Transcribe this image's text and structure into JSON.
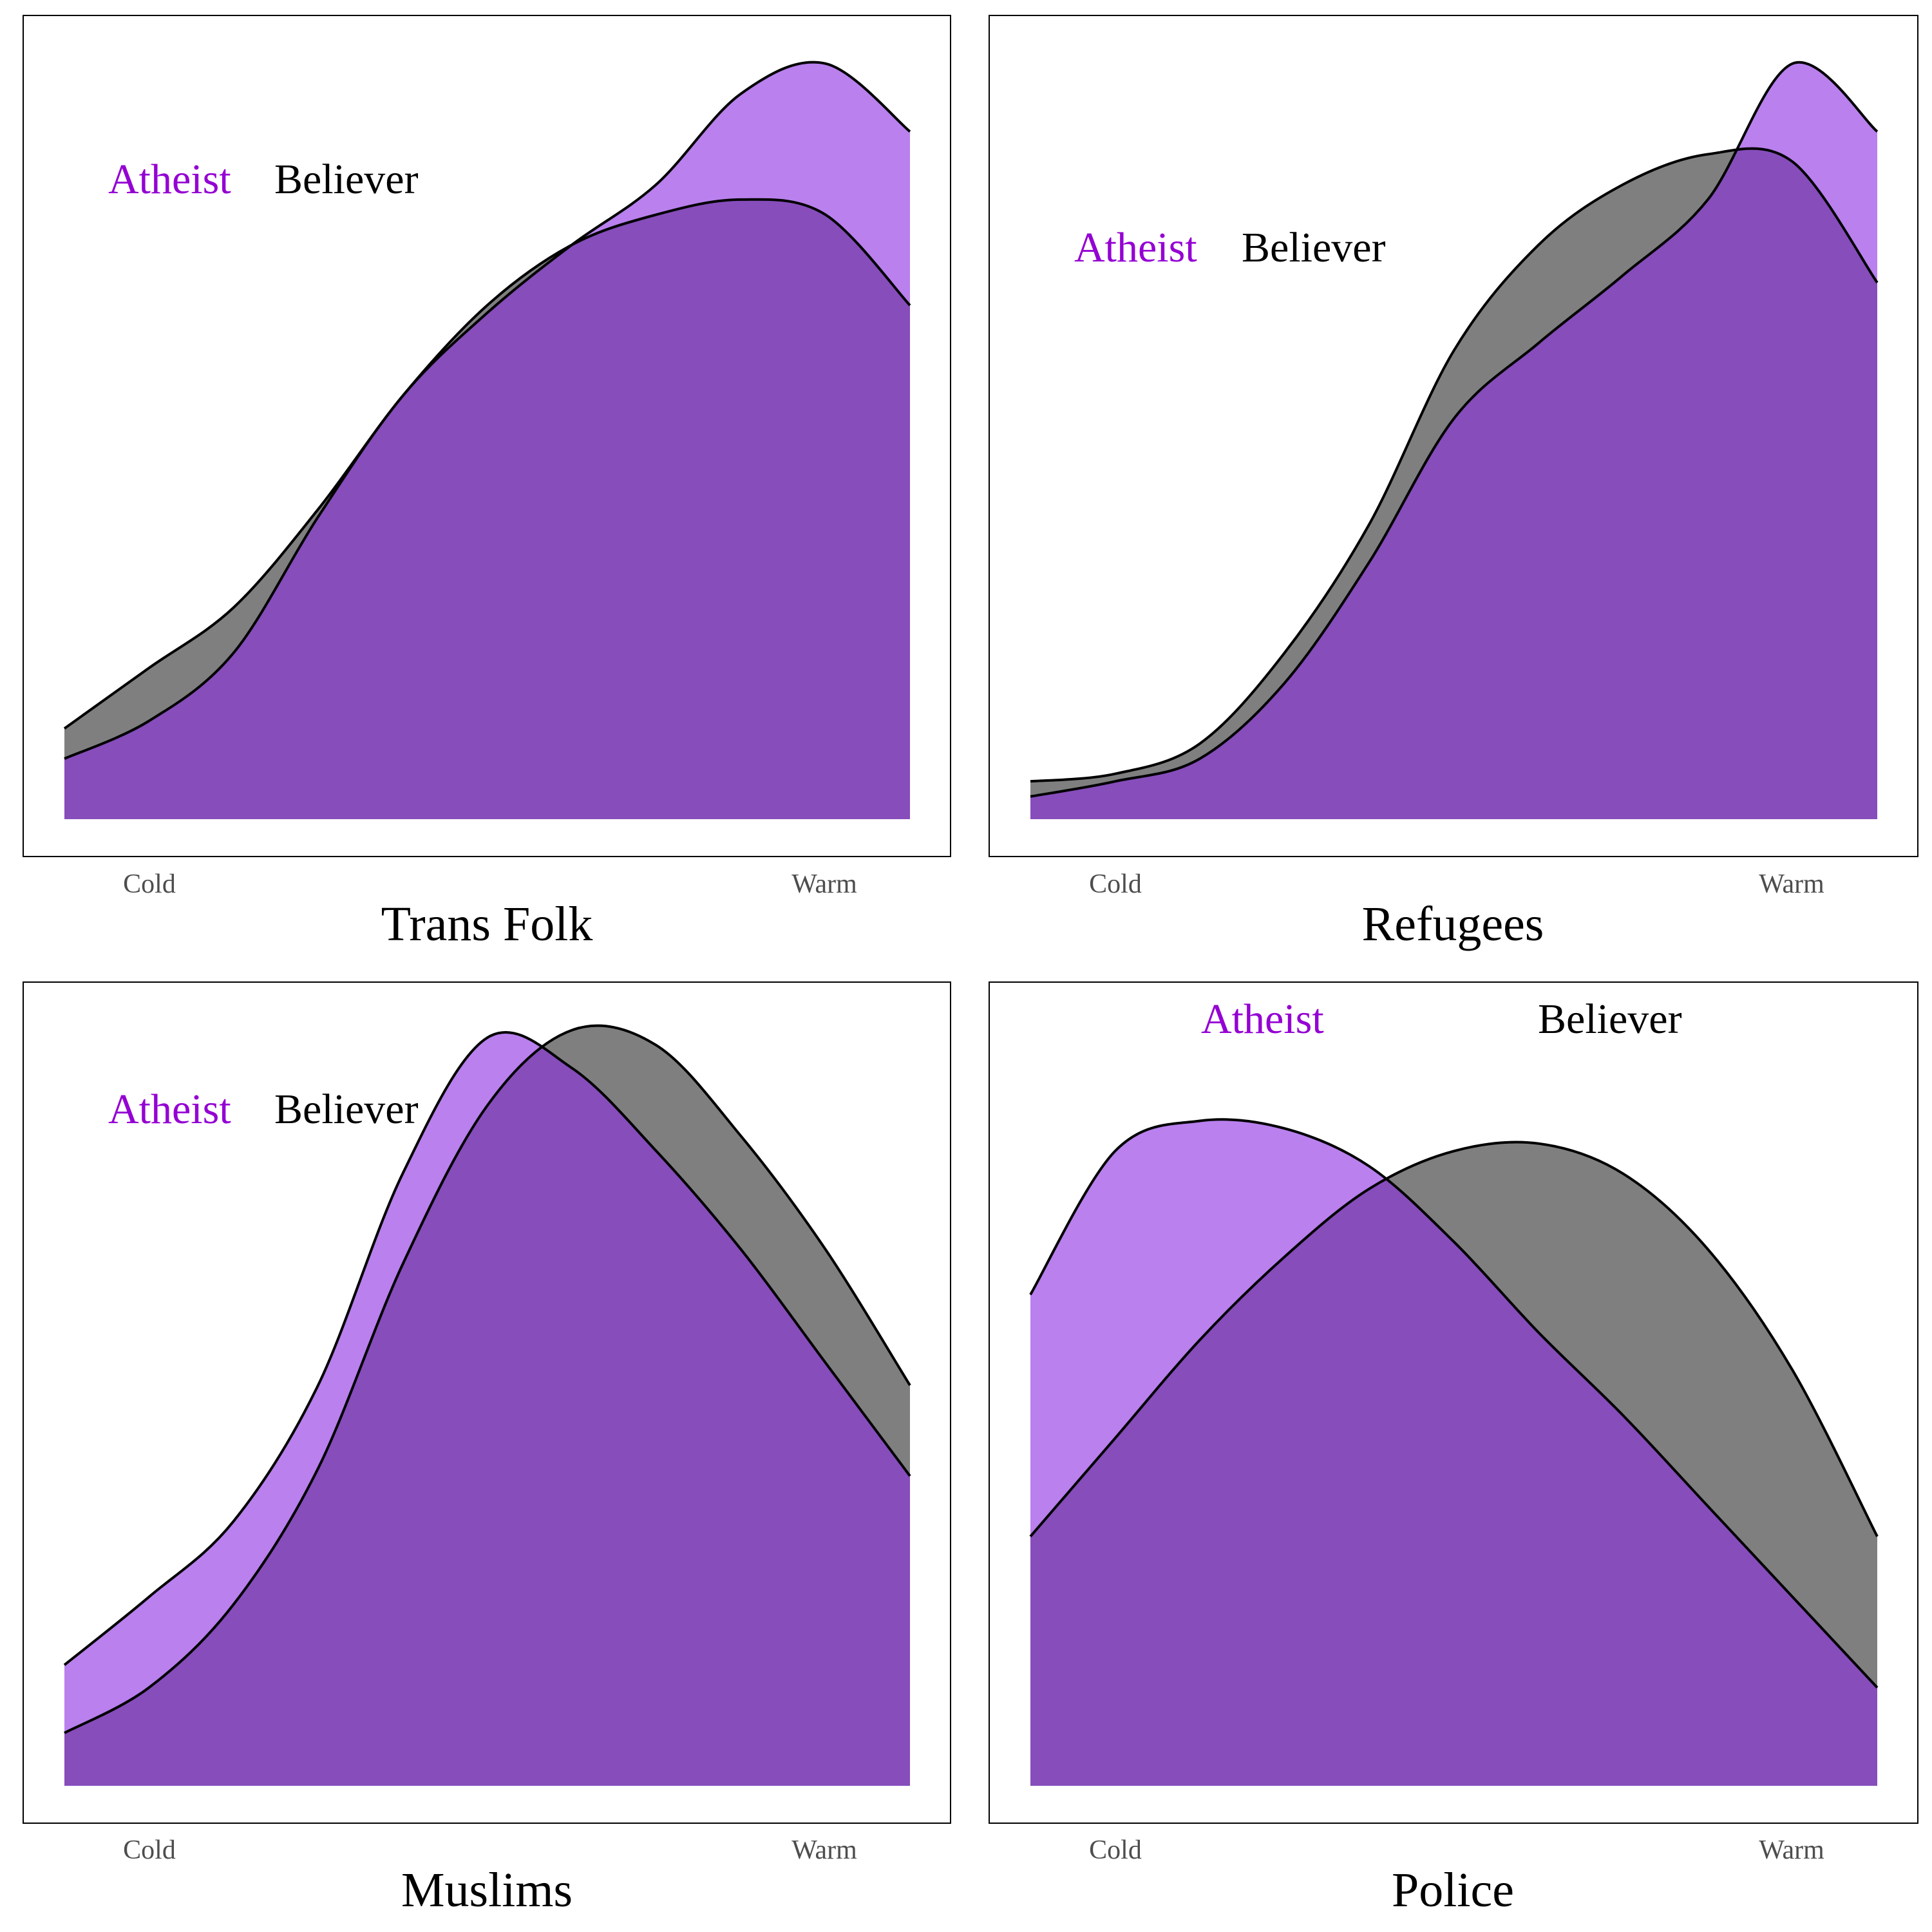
{
  "chart_data": [
    {
      "type": "area",
      "title": "Trans Folk",
      "x_tick_labels": [
        "Cold",
        "Warm"
      ],
      "legend": [
        {
          "name": "Atheist",
          "color": "#9400d3"
        },
        {
          "name": "Believer",
          "color": "#000000"
        }
      ],
      "x": [
        0,
        0.1,
        0.2,
        0.3,
        0.4,
        0.5,
        0.6,
        0.7,
        0.8,
        0.9,
        1
      ],
      "series": [
        {
          "name": "Atheist",
          "fill": "rgba(138,43,226,0.6)",
          "values": [
            0.08,
            0.13,
            0.22,
            0.4,
            0.56,
            0.67,
            0.76,
            0.84,
            0.96,
            1.0,
            0.91
          ]
        },
        {
          "name": "Believer",
          "fill": "rgba(0,0,0,0.5)",
          "values": [
            0.12,
            0.2,
            0.28,
            0.41,
            0.56,
            0.68,
            0.76,
            0.8,
            0.82,
            0.8,
            0.68
          ]
        }
      ],
      "ylim": [
        0,
        1.05
      ]
    },
    {
      "type": "area",
      "title": "Refugees",
      "x_tick_labels": [
        "Cold",
        "Warm"
      ],
      "legend": [
        {
          "name": "Atheist",
          "color": "#9400d3"
        },
        {
          "name": "Believer",
          "color": "#000000"
        }
      ],
      "x": [
        0,
        0.1,
        0.2,
        0.3,
        0.4,
        0.5,
        0.6,
        0.7,
        0.8,
        0.9,
        1
      ],
      "series": [
        {
          "name": "Atheist",
          "fill": "rgba(138,43,226,0.6)",
          "values": [
            0.03,
            0.05,
            0.08,
            0.18,
            0.34,
            0.53,
            0.63,
            0.72,
            0.82,
            1.0,
            0.91
          ]
        },
        {
          "name": "Believer",
          "fill": "rgba(0,0,0,0.5)",
          "values": [
            0.05,
            0.06,
            0.1,
            0.22,
            0.39,
            0.62,
            0.76,
            0.84,
            0.88,
            0.87,
            0.71
          ]
        }
      ],
      "ylim": [
        0,
        1.05
      ]
    },
    {
      "type": "area",
      "title": "Muslims",
      "x_tick_labels": [
        "Cold",
        "Warm"
      ],
      "legend": [
        {
          "name": "Atheist",
          "color": "#9400d3"
        },
        {
          "name": "Believer",
          "color": "#000000"
        }
      ],
      "x": [
        0,
        0.1,
        0.2,
        0.3,
        0.4,
        0.5,
        0.6,
        0.7,
        0.8,
        0.9,
        1
      ],
      "series": [
        {
          "name": "Atheist",
          "fill": "rgba(138,43,226,0.6)",
          "values": [
            0.16,
            0.25,
            0.35,
            0.53,
            0.81,
            0.99,
            0.95,
            0.84,
            0.71,
            0.56,
            0.41
          ]
        },
        {
          "name": "Believer",
          "fill": "rgba(0,0,0,0.5)",
          "values": [
            0.07,
            0.13,
            0.24,
            0.42,
            0.69,
            0.9,
            1.0,
            0.98,
            0.86,
            0.71,
            0.53
          ]
        }
      ],
      "ylim": [
        0,
        1.05
      ]
    },
    {
      "type": "area",
      "title": "Police",
      "x_tick_labels": [
        "Cold",
        "Warm"
      ],
      "legend": [
        {
          "name": "Atheist",
          "color": "#9400d3"
        },
        {
          "name": "Believer",
          "color": "#000000"
        }
      ],
      "x": [
        0,
        0.1,
        0.2,
        0.3,
        0.4,
        0.5,
        0.6,
        0.7,
        0.8,
        0.9,
        1
      ],
      "series": [
        {
          "name": "Atheist",
          "fill": "rgba(138,43,226,0.6)",
          "values": [
            0.65,
            0.84,
            0.88,
            0.87,
            0.82,
            0.72,
            0.6,
            0.49,
            0.37,
            0.25,
            0.13
          ]
        },
        {
          "name": "Believer",
          "fill": "rgba(0,0,0,0.5)",
          "values": [
            0.33,
            0.46,
            0.59,
            0.7,
            0.79,
            0.84,
            0.85,
            0.81,
            0.71,
            0.55,
            0.33
          ]
        }
      ],
      "ylim": [
        0,
        1.05
      ]
    }
  ]
}
